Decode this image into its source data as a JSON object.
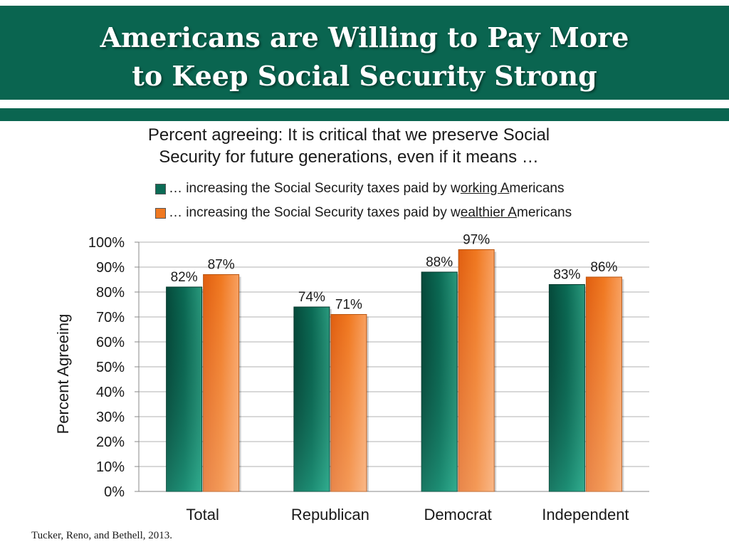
{
  "slide": {
    "title_line1": "Americans are Willing to Pay More",
    "title_line2": "to Keep Social Security Strong",
    "subtitle_line1": "Percent agreeing: It is critical that we preserve Social",
    "subtitle_line2": "Security for future generations, even if it means …",
    "source": "Tucker, Reno, and Bethell, 2013."
  },
  "legend": {
    "working": {
      "prefix": "… increasing the Social Security taxes paid by w",
      "underlined": "orking A",
      "suffix": "mericans"
    },
    "wealthier": {
      "prefix": "… increasing the Social Security taxes paid by w",
      "underlined": "ealthier A",
      "suffix": "mericans"
    }
  },
  "colors": {
    "header_green": "#0a6550",
    "series_green": "#0b6b55",
    "series_orange": "#f07820"
  },
  "chart_data": {
    "type": "bar",
    "ylabel": "Percent Agreeing",
    "xlabel": "",
    "ylim": [
      0,
      100
    ],
    "yticks": [
      "0%",
      "10%",
      "20%",
      "30%",
      "40%",
      "50%",
      "60%",
      "70%",
      "80%",
      "90%",
      "100%"
    ],
    "grid": true,
    "legend_position": "top",
    "categories": [
      "Total",
      "Republican",
      "Democrat",
      "Independent"
    ],
    "series": [
      {
        "name": "… increasing the Social Security taxes paid by working Americans",
        "color": "#0b6b55",
        "values": [
          82,
          74,
          88,
          83
        ],
        "labels": [
          "82%",
          "74%",
          "88%",
          "83%"
        ]
      },
      {
        "name": "… increasing the Social Security taxes paid by wealthier Americans",
        "color": "#f07820",
        "values": [
          87,
          71,
          97,
          86
        ],
        "labels": [
          "87%",
          "71%",
          "97%",
          "86%"
        ]
      }
    ]
  }
}
